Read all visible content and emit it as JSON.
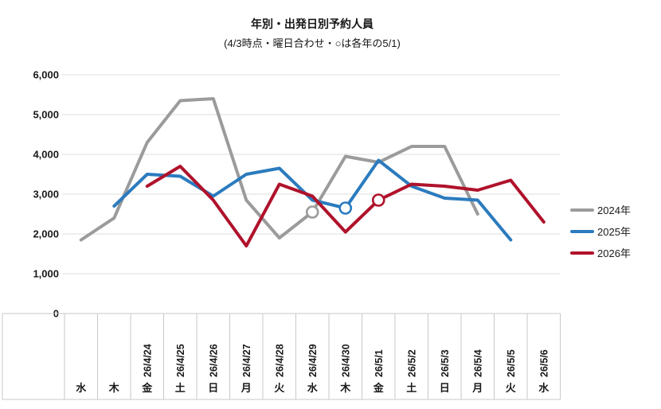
{
  "chart_data": {
    "type": "line",
    "title": "年別・出発日別予約人員",
    "subtitle": "(4/3時点・曜日合わせ・○は各年の5/1)",
    "y_axis": {
      "min": 0,
      "max": 6000,
      "step": 1000,
      "tick_labels": [
        "0",
        "1,000",
        "2,000",
        "3,000",
        "4,000",
        "5,000",
        "6,000"
      ]
    },
    "grid": true,
    "legend_position": "right",
    "categories": [
      {
        "date": "",
        "weekday": "水"
      },
      {
        "date": "",
        "weekday": "木"
      },
      {
        "date": "26/4/24",
        "weekday": "金"
      },
      {
        "date": "26/4/25",
        "weekday": "土"
      },
      {
        "date": "26/4/26",
        "weekday": "日"
      },
      {
        "date": "26/4/27",
        "weekday": "月"
      },
      {
        "date": "26/4/28",
        "weekday": "火"
      },
      {
        "date": "26/4/29",
        "weekday": "水"
      },
      {
        "date": "26/4/30",
        "weekday": "木"
      },
      {
        "date": "26/5/1",
        "weekday": "金"
      },
      {
        "date": "26/5/2",
        "weekday": "土"
      },
      {
        "date": "26/5/3",
        "weekday": "日"
      },
      {
        "date": "26/5/4",
        "weekday": "月"
      },
      {
        "date": "26/5/5",
        "weekday": "火"
      },
      {
        "date": "26/5/6",
        "weekday": "水"
      }
    ],
    "series": [
      {
        "name": "2024年",
        "color": "#9b9b9b",
        "values": [
          1850,
          2400,
          4300,
          5350,
          5400,
          2850,
          1900,
          2550,
          3950,
          3800,
          4200,
          4200,
          2500,
          null,
          null
        ],
        "circle_marker_index": 7
      },
      {
        "name": "2025年",
        "color": "#2b7bbe",
        "values": [
          null,
          2700,
          3500,
          3450,
          2950,
          3500,
          3650,
          2850,
          2650,
          3850,
          3200,
          2900,
          2850,
          1850,
          null
        ],
        "circle_marker_index": 8
      },
      {
        "name": "2026年",
        "color": "#b0122b",
        "values": [
          null,
          null,
          3200,
          3700,
          2850,
          1700,
          3250,
          2950,
          2050,
          2850,
          3250,
          3200,
          3100,
          3350,
          2300
        ],
        "circle_marker_index": 9
      }
    ],
    "colors": {
      "gridline": "#dedede",
      "table_border": "#c9c9c9",
      "text": "#1a1a1a",
      "marker_fill": "#ffffff"
    }
  }
}
